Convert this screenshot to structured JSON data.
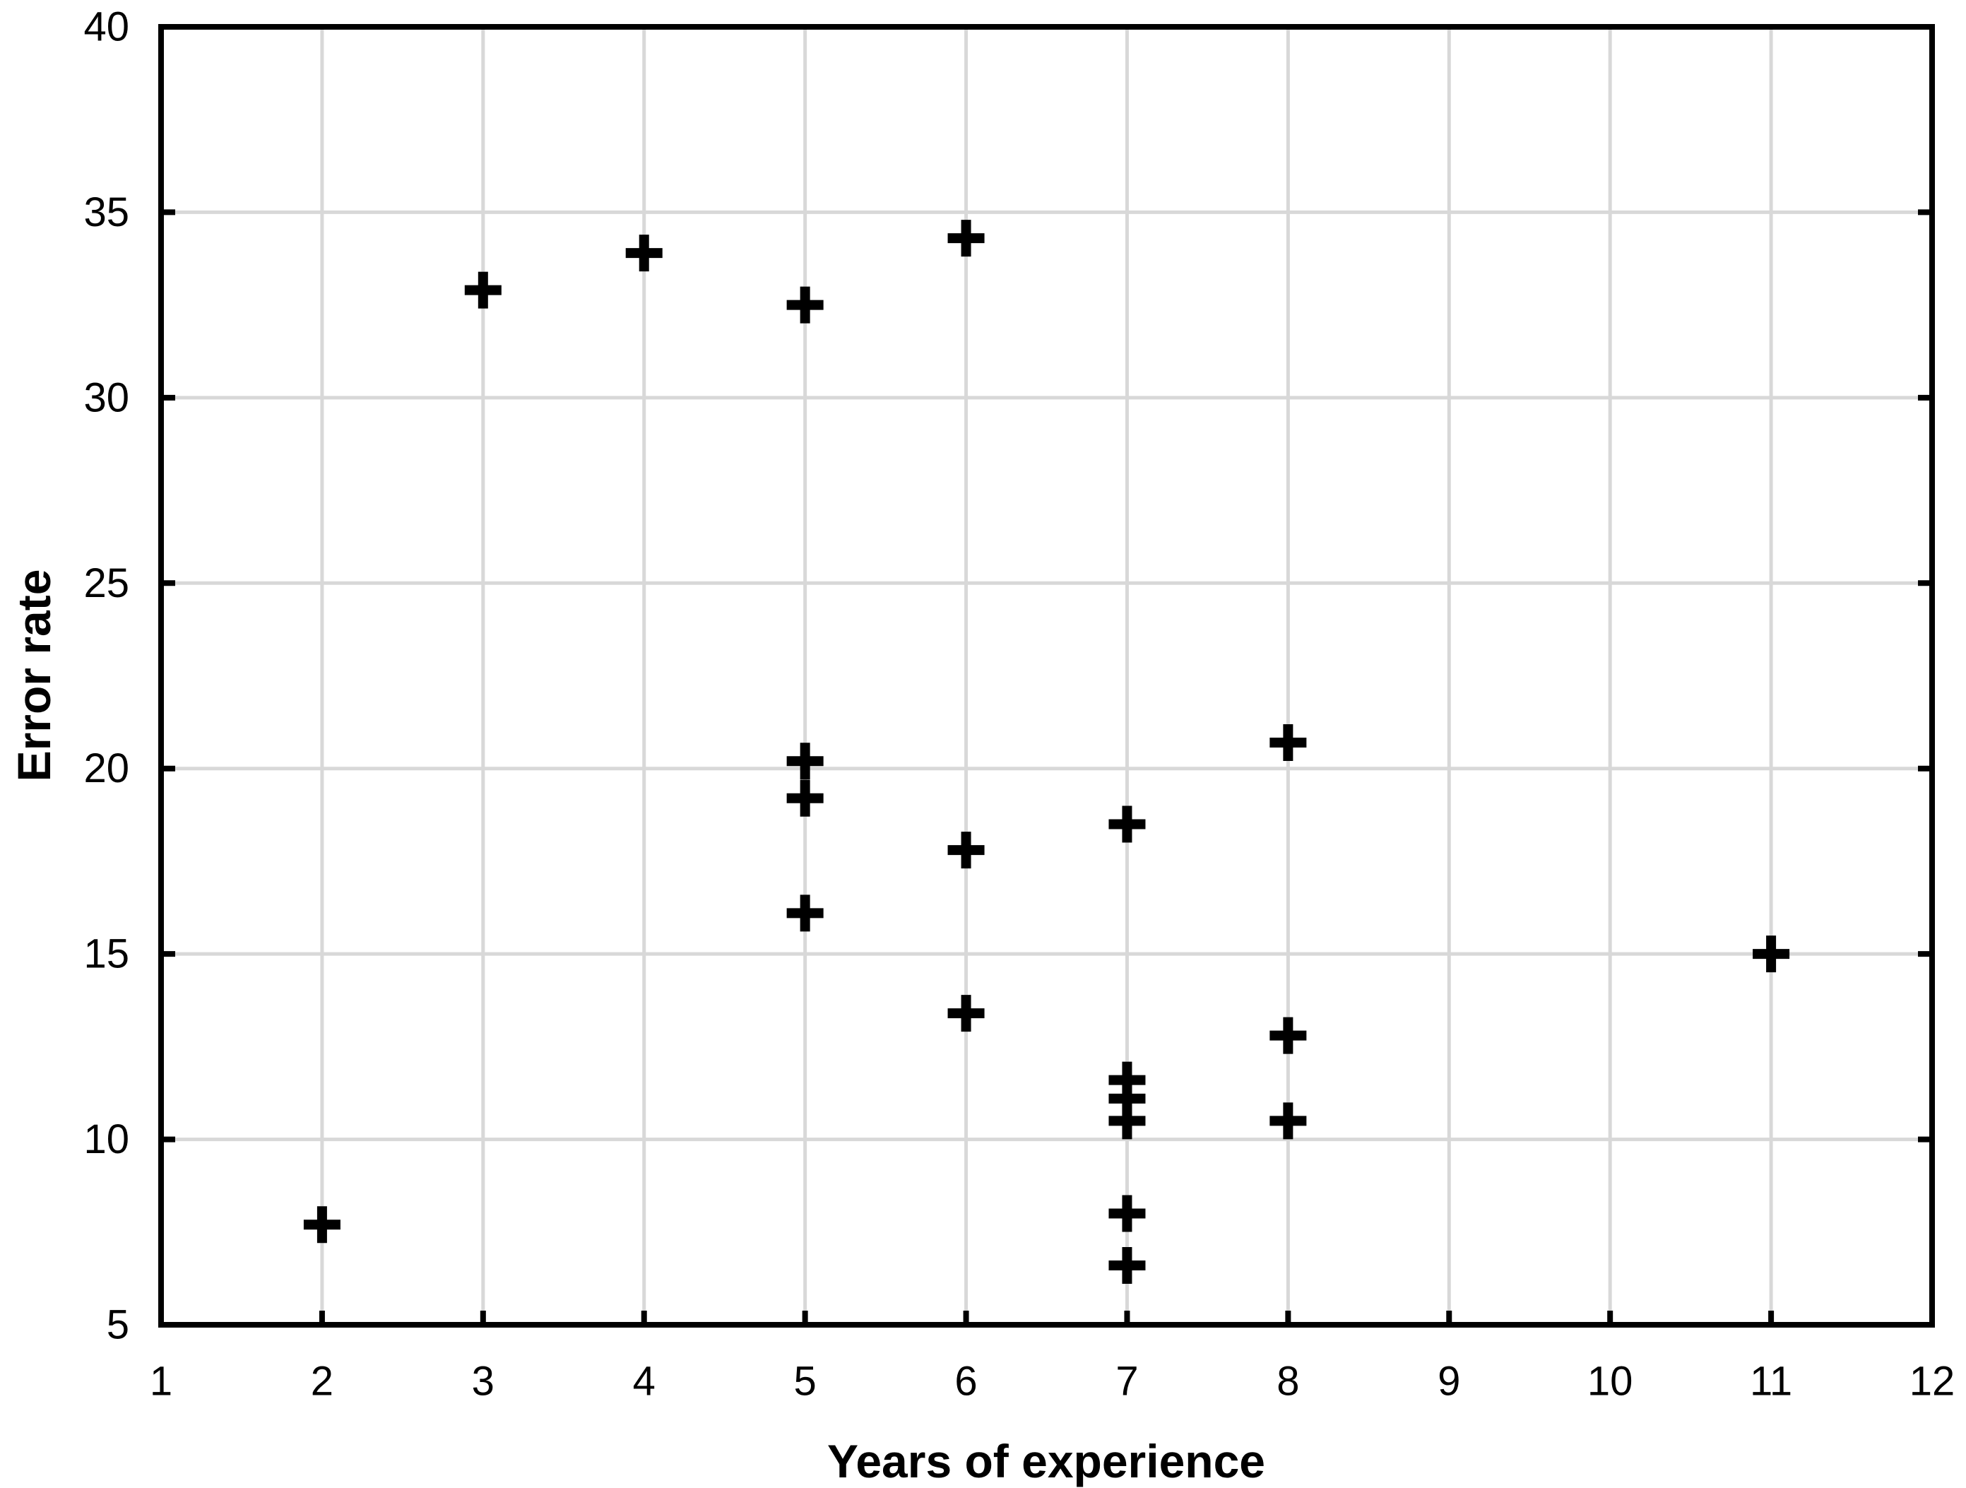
{
  "chart_data": {
    "type": "scatter",
    "title": "",
    "xlabel": "Years of experience",
    "ylabel": "Error rate",
    "xlim": [
      1,
      12
    ],
    "ylim": [
      5,
      40
    ],
    "xticks": [
      1,
      2,
      3,
      4,
      5,
      6,
      7,
      8,
      9,
      10,
      11,
      12
    ],
    "yticks": [
      5,
      10,
      15,
      20,
      25,
      30,
      35,
      40
    ],
    "grid": true,
    "legend_position": "none",
    "marker": {
      "shape": "plus",
      "size": 52,
      "stroke_width": 14,
      "color": "#000000"
    },
    "colors": {
      "grid": "#d8d8d8",
      "axis": "#000000",
      "text": "#000000",
      "background": "#ffffff"
    },
    "points": [
      {
        "x": 2,
        "y": 7.7
      },
      {
        "x": 3,
        "y": 32.9
      },
      {
        "x": 4,
        "y": 33.9
      },
      {
        "x": 5,
        "y": 32.5
      },
      {
        "x": 5,
        "y": 20.2
      },
      {
        "x": 5,
        "y": 19.2
      },
      {
        "x": 5,
        "y": 16.1
      },
      {
        "x": 6,
        "y": 34.3
      },
      {
        "x": 6,
        "y": 17.8
      },
      {
        "x": 6,
        "y": 13.4
      },
      {
        "x": 7,
        "y": 18.5
      },
      {
        "x": 7,
        "y": 11.6
      },
      {
        "x": 7,
        "y": 11.1
      },
      {
        "x": 7,
        "y": 10.5
      },
      {
        "x": 7,
        "y": 8.0
      },
      {
        "x": 7,
        "y": 6.6
      },
      {
        "x": 8,
        "y": 20.7
      },
      {
        "x": 8,
        "y": 12.8
      },
      {
        "x": 8,
        "y": 10.5
      },
      {
        "x": 11,
        "y": 15.0
      }
    ]
  }
}
